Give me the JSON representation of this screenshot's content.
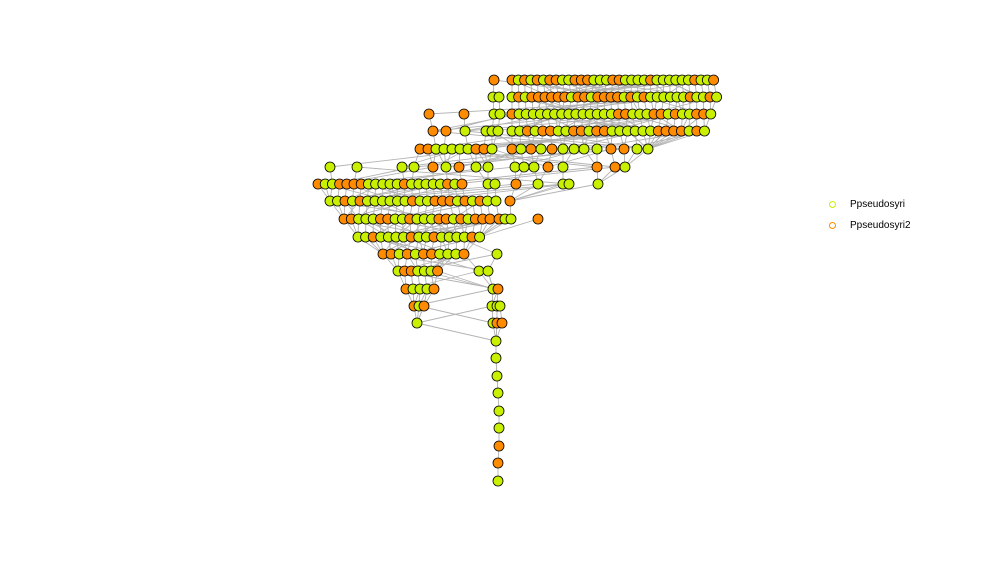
{
  "legend": {
    "items": [
      {
        "label": "Ppseudosyri",
        "color": "#c8f000"
      },
      {
        "label": "Ppseudosyri2",
        "color": "#ff8c00"
      }
    ]
  },
  "colors": {
    "edge": "#b4b4b4",
    "node_outline": "#000000",
    "node_fill_a": "#c8f000",
    "node_fill_b": "#ff8c00"
  },
  "node_shape": "circle"
}
